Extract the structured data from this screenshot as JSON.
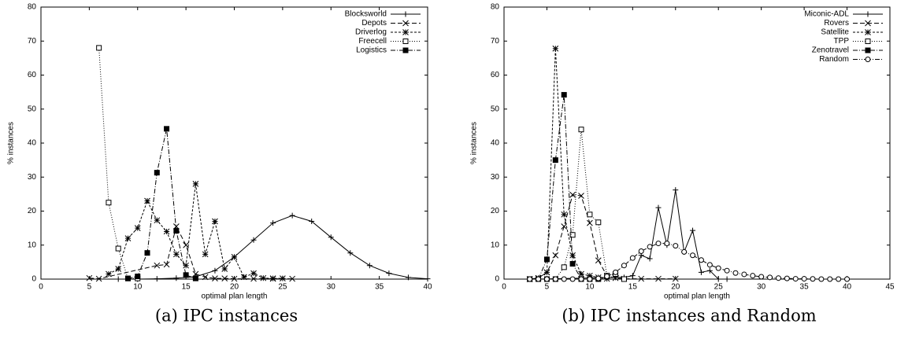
{
  "chart_data": [
    {
      "type": "line",
      "caption": "(a) IPC instances",
      "xlabel": "optimal plan length",
      "ylabel": "% instances",
      "xlim": [
        0,
        40
      ],
      "xticks": [
        0,
        5,
        10,
        15,
        20,
        25,
        30,
        35,
        40
      ],
      "ylim": [
        0,
        80
      ],
      "yticks": [
        0,
        10,
        20,
        30,
        40,
        50,
        60,
        70,
        80
      ],
      "legend": "upper right",
      "series": [
        {
          "name": "Blocksworld",
          "marker": "plus",
          "dash": "solid",
          "color": "#000000",
          "x": [
            8,
            10,
            12,
            14,
            16,
            18,
            20,
            22,
            24,
            26,
            28,
            30,
            32,
            34,
            36,
            38,
            40
          ],
          "values": [
            0,
            0,
            0.1,
            0.3,
            0.7,
            2.5,
            6.5,
            11.5,
            16.5,
            18.7,
            17,
            12.3,
            7.7,
            4,
            1.7,
            0.5,
            0.1
          ]
        },
        {
          "name": "Depots",
          "marker": "x",
          "dash": "dashed",
          "color": "#000000",
          "x": [
            5,
            6,
            12,
            13,
            14,
            15,
            16,
            17,
            18,
            19,
            20,
            22,
            24,
            26
          ],
          "values": [
            0.3,
            0.1,
            4,
            4.3,
            15.5,
            10,
            1.5,
            0.6,
            0.2,
            0.2,
            0.1,
            0.1,
            0.1,
            0.1
          ]
        },
        {
          "name": "Driverlog",
          "marker": "star",
          "dash": "shortdash",
          "color": "#000000",
          "x": [
            7,
            8,
            9,
            10,
            11,
            12,
            13,
            14,
            15,
            16,
            17,
            18,
            19,
            20,
            21,
            22,
            23,
            24,
            25
          ],
          "values": [
            1.5,
            3,
            12,
            15,
            23,
            17.3,
            14,
            7.3,
            4,
            28,
            7.3,
            17,
            3,
            6.5,
            0.6,
            1.7,
            0.3,
            0.2,
            0.2
          ]
        },
        {
          "name": "Freecell",
          "marker": "square",
          "dash": "dotted",
          "color": "#000000",
          "x": [
            6,
            7,
            8,
            9,
            10
          ],
          "values": [
            68,
            22.5,
            9,
            0.2,
            0.2
          ]
        },
        {
          "name": "Logistics",
          "marker": "filled-square",
          "dash": "dashdot",
          "color": "#000000",
          "x": [
            9,
            10,
            11,
            12,
            13,
            14,
            15,
            16
          ],
          "values": [
            0.2,
            0.8,
            7.7,
            31.3,
            44.2,
            14.2,
            1.2,
            0.2
          ]
        }
      ]
    },
    {
      "type": "line",
      "caption": "(b) IPC instances and Random",
      "xlabel": "optimal plan length",
      "ylabel": "% instances",
      "xlim": [
        0,
        45
      ],
      "xticks": [
        0,
        5,
        10,
        15,
        20,
        25,
        30,
        35,
        40,
        45
      ],
      "ylim": [
        0,
        80
      ],
      "yticks": [
        0,
        10,
        20,
        30,
        40,
        50,
        60,
        70,
        80
      ],
      "legend": "upper right",
      "series": [
        {
          "name": "Miconic-ADL",
          "marker": "plus",
          "dash": "solid",
          "color": "#000000",
          "x": [
            3,
            4,
            13,
            14,
            15,
            16,
            17,
            18,
            19,
            20,
            21,
            22,
            23,
            24,
            25,
            26
          ],
          "values": [
            0,
            0,
            0.5,
            0.5,
            1,
            7,
            6,
            21,
            10,
            26.2,
            8,
            14.3,
            2,
            2.5,
            0,
            0
          ]
        },
        {
          "name": "Rovers",
          "marker": "x",
          "dash": "dashed",
          "color": "#000000",
          "x": [
            3,
            4,
            5,
            6,
            7,
            8,
            9,
            10,
            11,
            12,
            13,
            14,
            16,
            18,
            20
          ],
          "values": [
            0,
            0.3,
            2,
            7,
            15.5,
            24.8,
            24.5,
            16.5,
            5.5,
            1,
            0.3,
            0.1,
            0.1,
            0.1,
            0.1
          ]
        },
        {
          "name": "Satellite",
          "marker": "star",
          "dash": "shortdash",
          "color": "#000000",
          "x": [
            3,
            4,
            5,
            6,
            7,
            8,
            9,
            10,
            11,
            12
          ],
          "values": [
            0,
            0.3,
            2,
            67.8,
            19,
            7,
            1.5,
            1,
            0.5,
            0.1
          ]
        },
        {
          "name": "TPP",
          "marker": "square",
          "dash": "dotted",
          "color": "#000000",
          "x": [
            5,
            6,
            7,
            8,
            9,
            10,
            11,
            12,
            13,
            14
          ],
          "values": [
            0,
            0,
            3.5,
            13,
            44,
            19,
            16.7,
            1,
            1.5,
            0
          ]
        },
        {
          "name": "Zenotravel",
          "marker": "filled-square",
          "dash": "dashdot",
          "color": "#000000",
          "x": [
            3,
            4,
            5,
            6,
            7,
            8,
            9,
            10,
            11
          ],
          "values": [
            0,
            0,
            5.8,
            35,
            54.2,
            4.5,
            0,
            0,
            0
          ]
        },
        {
          "name": "Random",
          "marker": "circle",
          "dash": "dashdotdot",
          "color": "#000000",
          "x": [
            3,
            4,
            5,
            6,
            7,
            8,
            9,
            10,
            11,
            12,
            13,
            14,
            15,
            16,
            17,
            18,
            19,
            20,
            21,
            22,
            23,
            24,
            25,
            26,
            27,
            28,
            29,
            30,
            31,
            32,
            33,
            34,
            35,
            36,
            37,
            38,
            39,
            40
          ],
          "values": [
            0,
            0,
            0,
            0,
            0,
            0,
            0,
            0,
            0.2,
            0.8,
            2,
            4,
            6.2,
            8.2,
            9.5,
            10.5,
            10.5,
            9.8,
            8,
            7,
            5.6,
            4.2,
            3.2,
            2.5,
            1.8,
            1.4,
            1,
            0.7,
            0.5,
            0.3,
            0.2,
            0.1,
            0.1,
            0.05,
            0,
            0,
            0,
            0
          ]
        }
      ]
    }
  ]
}
